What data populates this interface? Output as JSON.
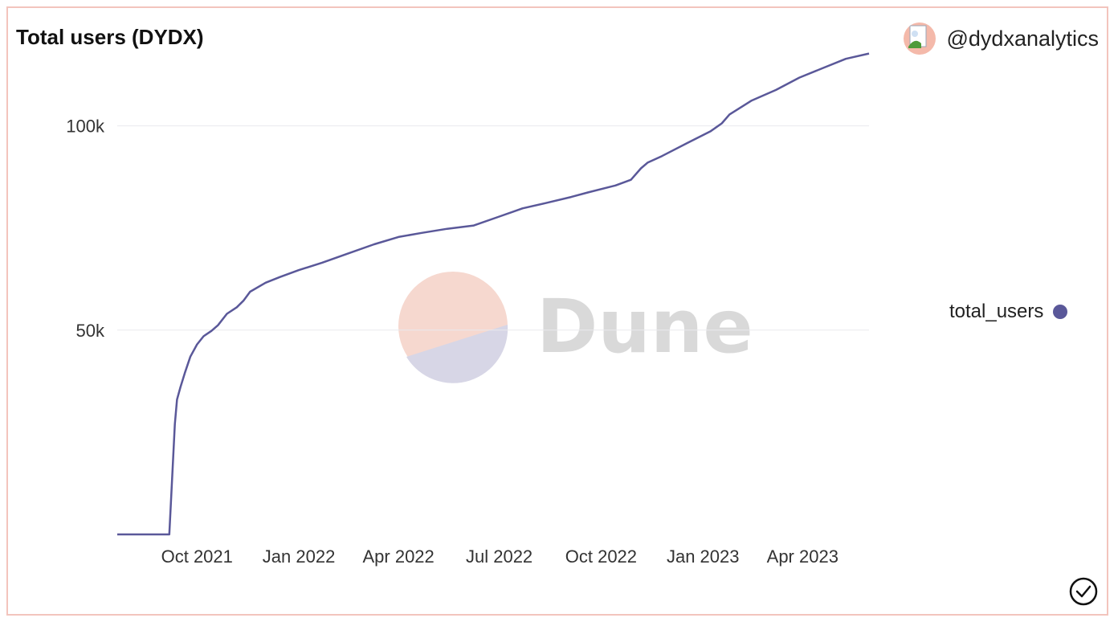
{
  "title": "Total users (DYDX)",
  "author": {
    "handle": "@dydxanalytics",
    "avatar_icon": "user-avatar-icon"
  },
  "watermark": {
    "text": "Dune",
    "icon": "dune-logo-icon"
  },
  "legend": {
    "label": "total_users",
    "color": "#5a5899"
  },
  "chart_data": {
    "type": "line",
    "title": "Total users (DYDX)",
    "xlabel": "",
    "ylabel": "",
    "x_ticks": [
      "Oct 2021",
      "Jan 2022",
      "Apr 2022",
      "Jul 2022",
      "Oct 2022",
      "Jan 2023",
      "Apr 2023"
    ],
    "y_ticks": [
      "50k",
      "100k"
    ],
    "ylim": [
      0,
      119000
    ],
    "grid": "horizontal",
    "legend_position": "right",
    "series": [
      {
        "name": "total_users",
        "color": "#5a5899",
        "x": [
          "2021-07-21",
          "2021-09-06",
          "2021-09-09",
          "2021-09-11",
          "2021-09-13",
          "2021-09-16",
          "2021-09-20",
          "2021-09-25",
          "2021-10-01",
          "2021-10-07",
          "2021-10-14",
          "2021-10-20",
          "2021-10-28",
          "2021-11-06",
          "2021-11-12",
          "2021-11-18",
          "2021-12-02",
          "2021-12-15",
          "2022-01-01",
          "2022-01-22",
          "2022-02-15",
          "2022-03-10",
          "2022-04-01",
          "2022-04-22",
          "2022-05-15",
          "2022-06-08",
          "2022-07-01",
          "2022-07-22",
          "2022-08-12",
          "2022-09-04",
          "2022-09-19",
          "2022-10-14",
          "2022-10-28",
          "2022-11-06",
          "2022-11-12",
          "2022-11-25",
          "2022-12-18",
          "2023-01-08",
          "2023-01-18",
          "2023-01-25",
          "2023-02-14",
          "2023-03-08",
          "2023-03-29",
          "2023-04-19",
          "2023-05-10",
          "2023-05-31"
        ],
        "values": [
          0,
          0,
          16000,
          27000,
          33000,
          36000,
          39500,
          43500,
          46500,
          48500,
          49800,
          51200,
          54000,
          55600,
          57200,
          59400,
          61600,
          63000,
          64700,
          66500,
          68800,
          71000,
          72800,
          73800,
          74800,
          75600,
          77800,
          79800,
          81100,
          82600,
          83700,
          85400,
          86800,
          89600,
          91000,
          92600,
          95800,
          98700,
          100600,
          102800,
          106200,
          108800,
          111800,
          114100,
          116400,
          117700
        ]
      }
    ]
  }
}
